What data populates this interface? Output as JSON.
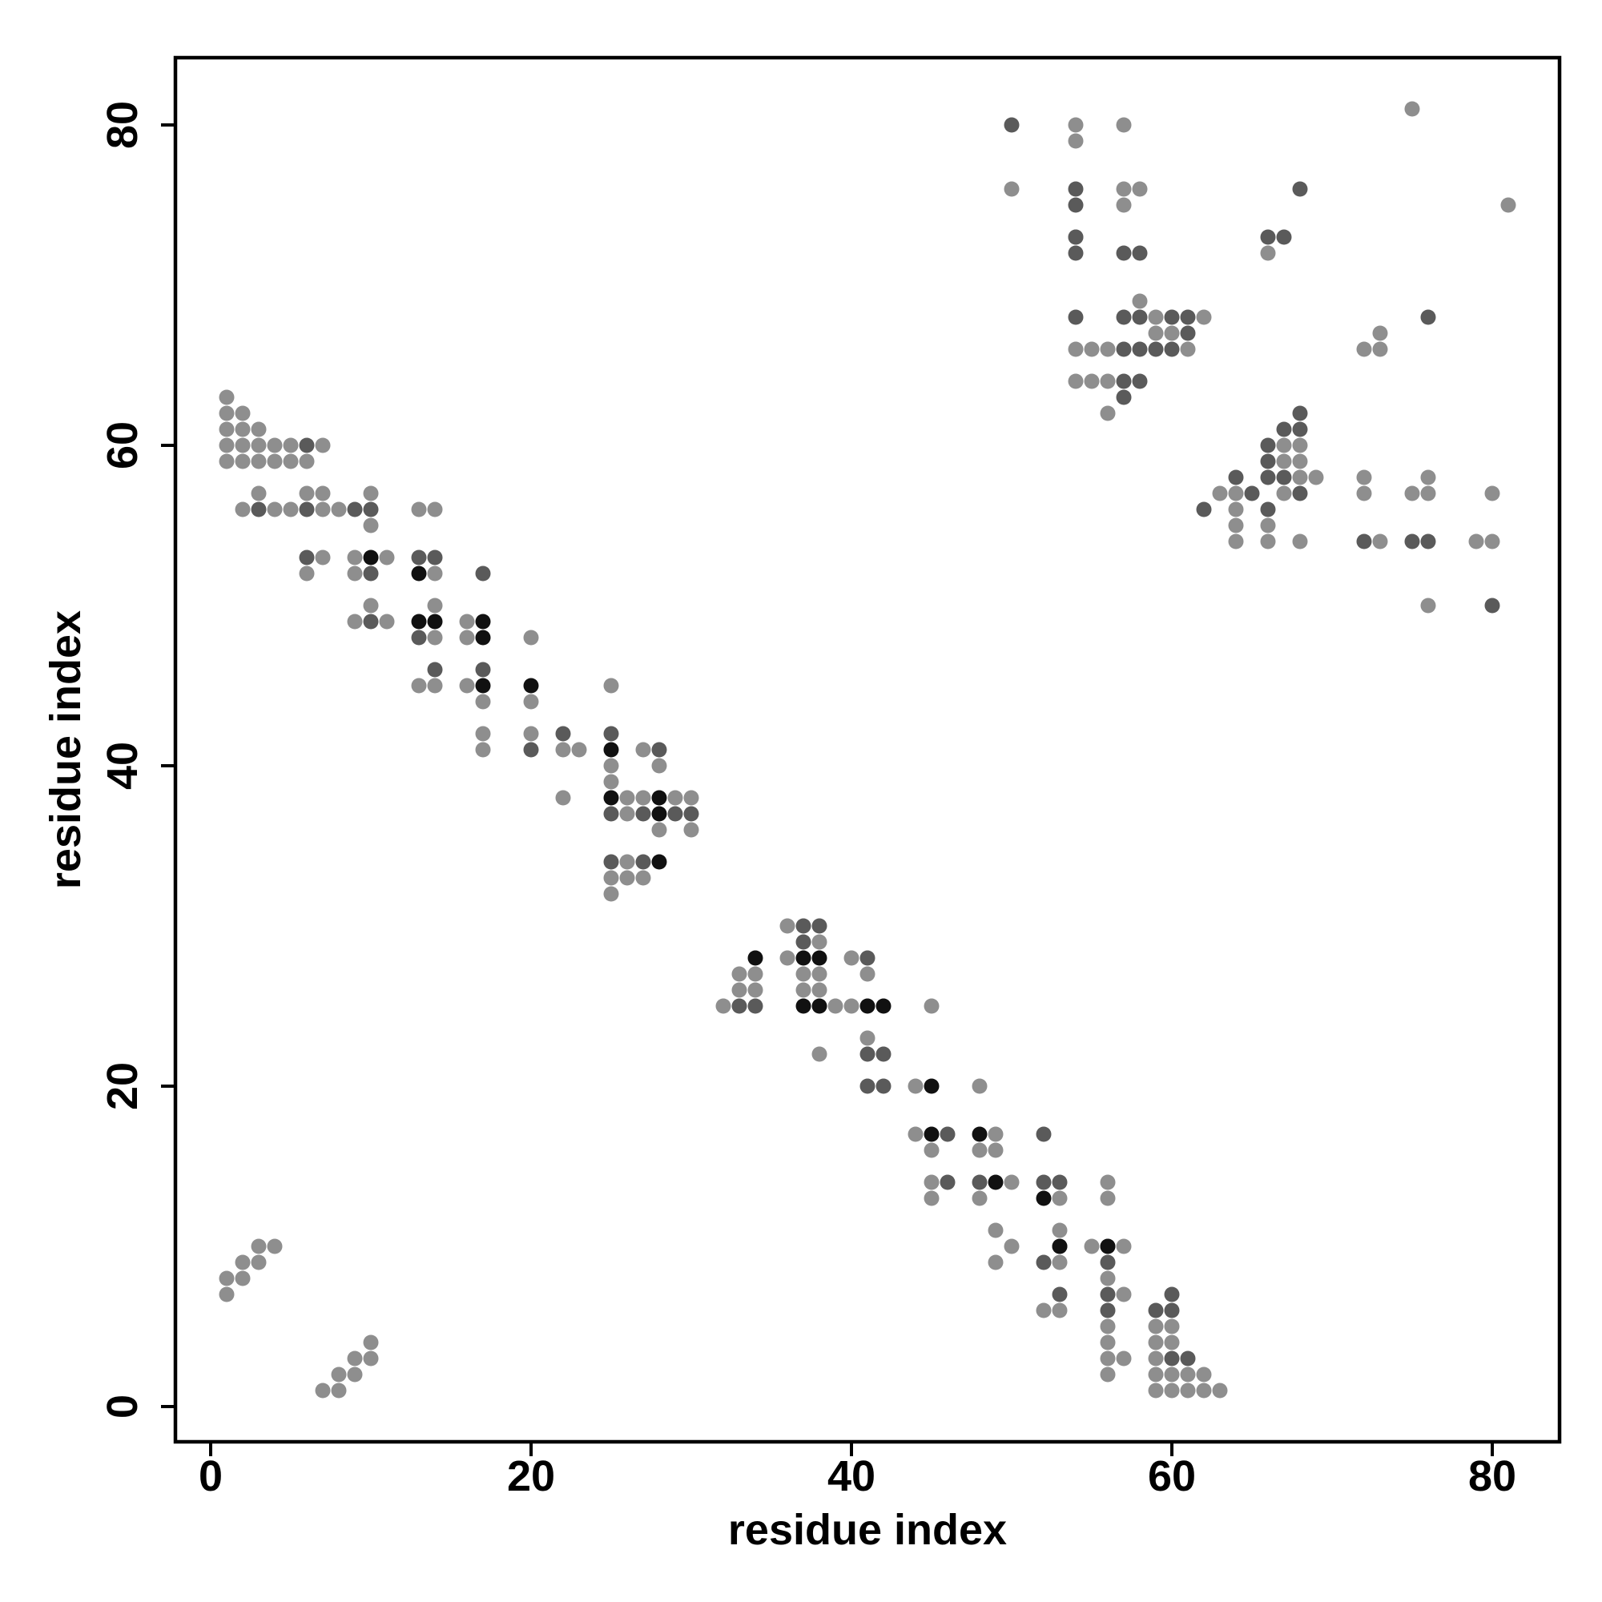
{
  "chart_data": {
    "type": "scatter",
    "title": "",
    "xlabel": "residue index",
    "ylabel": "residue index",
    "xlim": [
      -2.2,
      84.2
    ],
    "ylim": [
      -2.2,
      84.2
    ],
    "x_ticks": [
      0,
      20,
      40,
      60,
      80
    ],
    "y_ticks": [
      0,
      20,
      40,
      60,
      80
    ],
    "grid": false,
    "legend": "none",
    "colors": {
      "dark": "#111111",
      "mid": "#5a5a5a",
      "light": "#8e8e8e"
    },
    "series": [
      {
        "shade": "dark",
        "points": [
          [
            28,
            37
          ],
          [
            25,
            38
          ],
          [
            37,
            28
          ],
          [
            38,
            25
          ],
          [
            45,
            17
          ],
          [
            17,
            45
          ],
          [
            34,
            28
          ],
          [
            28,
            34
          ],
          [
            49,
            14
          ],
          [
            17,
            49
          ],
          [
            52,
            13
          ],
          [
            13,
            52
          ],
          [
            45,
            20
          ],
          [
            20,
            45
          ],
          [
            17,
            48
          ],
          [
            13,
            49
          ],
          [
            14,
            49
          ],
          [
            28,
            38
          ],
          [
            38,
            28
          ],
          [
            37,
            25
          ],
          [
            41,
            25
          ],
          [
            25,
            41
          ],
          [
            42,
            25
          ],
          [
            48,
            17
          ],
          [
            10,
            53
          ],
          [
            56,
            10
          ],
          [
            53,
            10
          ]
        ]
      },
      {
        "shade": "mid",
        "points": [
          [
            50,
            80
          ],
          [
            54,
            76
          ],
          [
            68,
            76
          ],
          [
            54,
            75
          ],
          [
            54,
            73
          ],
          [
            54,
            72
          ],
          [
            57,
            72
          ],
          [
            58,
            72
          ],
          [
            54,
            68
          ],
          [
            57,
            68
          ],
          [
            58,
            68
          ],
          [
            60,
            68
          ],
          [
            61,
            68
          ],
          [
            76,
            68
          ],
          [
            57,
            66
          ],
          [
            58,
            66
          ],
          [
            59,
            66
          ],
          [
            60,
            66
          ],
          [
            61,
            67
          ],
          [
            57,
            64
          ],
          [
            58,
            64
          ],
          [
            57,
            63
          ],
          [
            64,
            58
          ],
          [
            66,
            60
          ],
          [
            66,
            59
          ],
          [
            67,
            61
          ],
          [
            68,
            61
          ],
          [
            66,
            58
          ],
          [
            67,
            58
          ],
          [
            68,
            57
          ],
          [
            66,
            56
          ],
          [
            72,
            54
          ],
          [
            76,
            54
          ],
          [
            80,
            50
          ],
          [
            6,
            60
          ],
          [
            6,
            56
          ],
          [
            9,
            56
          ],
          [
            10,
            56
          ],
          [
            3,
            56
          ],
          [
            6,
            53
          ],
          [
            10,
            52
          ],
          [
            13,
            53
          ],
          [
            14,
            53
          ],
          [
            13,
            48
          ],
          [
            10,
            49
          ],
          [
            14,
            46
          ],
          [
            17,
            46
          ],
          [
            17,
            52
          ],
          [
            20,
            41
          ],
          [
            22,
            42
          ],
          [
            25,
            42
          ],
          [
            25,
            37
          ],
          [
            27,
            37
          ],
          [
            29,
            37
          ],
          [
            28,
            41
          ],
          [
            25,
            34
          ],
          [
            27,
            34
          ],
          [
            34,
            25
          ],
          [
            33,
            25
          ],
          [
            37,
            30
          ],
          [
            37,
            29
          ],
          [
            38,
            30
          ],
          [
            41,
            28
          ],
          [
            41,
            22
          ],
          [
            42,
            22
          ],
          [
            41,
            20
          ],
          [
            42,
            20
          ],
          [
            46,
            17
          ],
          [
            48,
            14
          ],
          [
            52,
            17
          ],
          [
            52,
            14
          ],
          [
            53,
            14
          ],
          [
            53,
            10
          ],
          [
            52,
            9
          ],
          [
            56,
            10
          ],
          [
            56,
            9
          ],
          [
            56,
            6
          ],
          [
            56,
            7
          ],
          [
            59,
            6
          ],
          [
            60,
            6
          ],
          [
            60,
            7
          ],
          [
            60,
            3
          ],
          [
            61,
            3
          ],
          [
            66,
            73
          ],
          [
            67,
            73
          ],
          [
            68,
            62
          ],
          [
            75,
            54
          ],
          [
            30,
            37
          ],
          [
            46,
            14
          ],
          [
            53,
            7
          ],
          [
            65,
            57
          ],
          [
            62,
            56
          ]
        ]
      },
      {
        "shade": "light",
        "points": [
          [
            54,
            80
          ],
          [
            54,
            79
          ],
          [
            57,
            80
          ],
          [
            75,
            81
          ],
          [
            50,
            76
          ],
          [
            57,
            76
          ],
          [
            58,
            76
          ],
          [
            57,
            75
          ],
          [
            81,
            75
          ],
          [
            54,
            73
          ],
          [
            66,
            72
          ],
          [
            58,
            69
          ],
          [
            59,
            68
          ],
          [
            59,
            67
          ],
          [
            60,
            67
          ],
          [
            61,
            66
          ],
          [
            62,
            68
          ],
          [
            55,
            66
          ],
          [
            56,
            66
          ],
          [
            54,
            66
          ],
          [
            54,
            64
          ],
          [
            55,
            64
          ],
          [
            56,
            64
          ],
          [
            56,
            62
          ],
          [
            72,
            66
          ],
          [
            73,
            66
          ],
          [
            73,
            67
          ],
          [
            64,
            57
          ],
          [
            63,
            57
          ],
          [
            64,
            56
          ],
          [
            64,
            55
          ],
          [
            64,
            54
          ],
          [
            66,
            55
          ],
          [
            66,
            54
          ],
          [
            67,
            57
          ],
          [
            67,
            59
          ],
          [
            67,
            60
          ],
          [
            68,
            59
          ],
          [
            68,
            58
          ],
          [
            68,
            60
          ],
          [
            69,
            58
          ],
          [
            72,
            58
          ],
          [
            72,
            57
          ],
          [
            73,
            54
          ],
          [
            75,
            57
          ],
          [
            76,
            58
          ],
          [
            76,
            57
          ],
          [
            79,
            54
          ],
          [
            80,
            54
          ],
          [
            80,
            57
          ],
          [
            76,
            50
          ],
          [
            68,
            54
          ],
          [
            1,
            63
          ],
          [
            1,
            62
          ],
          [
            2,
            62
          ],
          [
            1,
            61
          ],
          [
            2,
            61
          ],
          [
            3,
            61
          ],
          [
            1,
            60
          ],
          [
            2,
            60
          ],
          [
            3,
            60
          ],
          [
            4,
            60
          ],
          [
            5,
            60
          ],
          [
            7,
            60
          ],
          [
            1,
            59
          ],
          [
            2,
            59
          ],
          [
            3,
            59
          ],
          [
            4,
            59
          ],
          [
            5,
            59
          ],
          [
            6,
            59
          ],
          [
            2,
            56
          ],
          [
            4,
            56
          ],
          [
            5,
            56
          ],
          [
            7,
            56
          ],
          [
            8,
            56
          ],
          [
            7,
            57
          ],
          [
            6,
            57
          ],
          [
            3,
            57
          ],
          [
            10,
            57
          ],
          [
            10,
            55
          ],
          [
            7,
            53
          ],
          [
            6,
            52
          ],
          [
            9,
            53
          ],
          [
            9,
            52
          ],
          [
            11,
            53
          ],
          [
            13,
            56
          ],
          [
            14,
            56
          ],
          [
            14,
            52
          ],
          [
            10,
            50
          ],
          [
            9,
            49
          ],
          [
            11,
            49
          ],
          [
            14,
            50
          ],
          [
            14,
            48
          ],
          [
            16,
            49
          ],
          [
            16,
            48
          ],
          [
            13,
            45
          ],
          [
            14,
            45
          ],
          [
            16,
            45
          ],
          [
            17,
            44
          ],
          [
            17,
            42
          ],
          [
            17,
            41
          ],
          [
            20,
            48
          ],
          [
            20,
            44
          ],
          [
            20,
            42
          ],
          [
            22,
            41
          ],
          [
            23,
            41
          ],
          [
            22,
            38
          ],
          [
            25,
            45
          ],
          [
            25,
            40
          ],
          [
            25,
            39
          ],
          [
            26,
            38
          ],
          [
            26,
            37
          ],
          [
            27,
            38
          ],
          [
            28,
            40
          ],
          [
            28,
            36
          ],
          [
            29,
            38
          ],
          [
            30,
            38
          ],
          [
            30,
            36
          ],
          [
            27,
            41
          ],
          [
            25,
            33
          ],
          [
            25,
            32
          ],
          [
            26,
            34
          ],
          [
            26,
            33
          ],
          [
            27,
            33
          ],
          [
            32,
            25
          ],
          [
            33,
            26
          ],
          [
            33,
            27
          ],
          [
            34,
            27
          ],
          [
            34,
            26
          ],
          [
            36,
            30
          ],
          [
            36,
            28
          ],
          [
            37,
            27
          ],
          [
            37,
            26
          ],
          [
            38,
            29
          ],
          [
            38,
            27
          ],
          [
            38,
            26
          ],
          [
            39,
            25
          ],
          [
            40,
            25
          ],
          [
            40,
            28
          ],
          [
            41,
            27
          ],
          [
            41,
            23
          ],
          [
            38,
            22
          ],
          [
            44,
            20
          ],
          [
            44,
            17
          ],
          [
            45,
            25
          ],
          [
            45,
            16
          ],
          [
            45,
            14
          ],
          [
            45,
            13
          ],
          [
            48,
            20
          ],
          [
            48,
            16
          ],
          [
            49,
            17
          ],
          [
            49,
            16
          ],
          [
            49,
            11
          ],
          [
            49,
            9
          ],
          [
            48,
            13
          ],
          [
            50,
            14
          ],
          [
            50,
            10
          ],
          [
            52,
            6
          ],
          [
            53,
            13
          ],
          [
            53,
            11
          ],
          [
            53,
            9
          ],
          [
            53,
            6
          ],
          [
            55,
            10
          ],
          [
            56,
            14
          ],
          [
            56,
            13
          ],
          [
            56,
            8
          ],
          [
            56,
            5
          ],
          [
            56,
            4
          ],
          [
            56,
            3
          ],
          [
            56,
            2
          ],
          [
            57,
            10
          ],
          [
            57,
            7
          ],
          [
            57,
            3
          ],
          [
            59,
            5
          ],
          [
            59,
            4
          ],
          [
            59,
            3
          ],
          [
            59,
            2
          ],
          [
            59,
            1
          ],
          [
            60,
            5
          ],
          [
            60,
            4
          ],
          [
            60,
            2
          ],
          [
            60,
            1
          ],
          [
            61,
            2
          ],
          [
            61,
            1
          ],
          [
            62,
            2
          ],
          [
            62,
            1
          ],
          [
            63,
            1
          ],
          [
            1,
            8
          ],
          [
            1,
            7
          ],
          [
            2,
            9
          ],
          [
            2,
            8
          ],
          [
            3,
            10
          ],
          [
            3,
            9
          ],
          [
            4,
            10
          ],
          [
            7,
            1
          ],
          [
            8,
            2
          ],
          [
            8,
            1
          ],
          [
            9,
            3
          ],
          [
            9,
            2
          ],
          [
            10,
            4
          ],
          [
            10,
            3
          ]
        ]
      }
    ]
  }
}
